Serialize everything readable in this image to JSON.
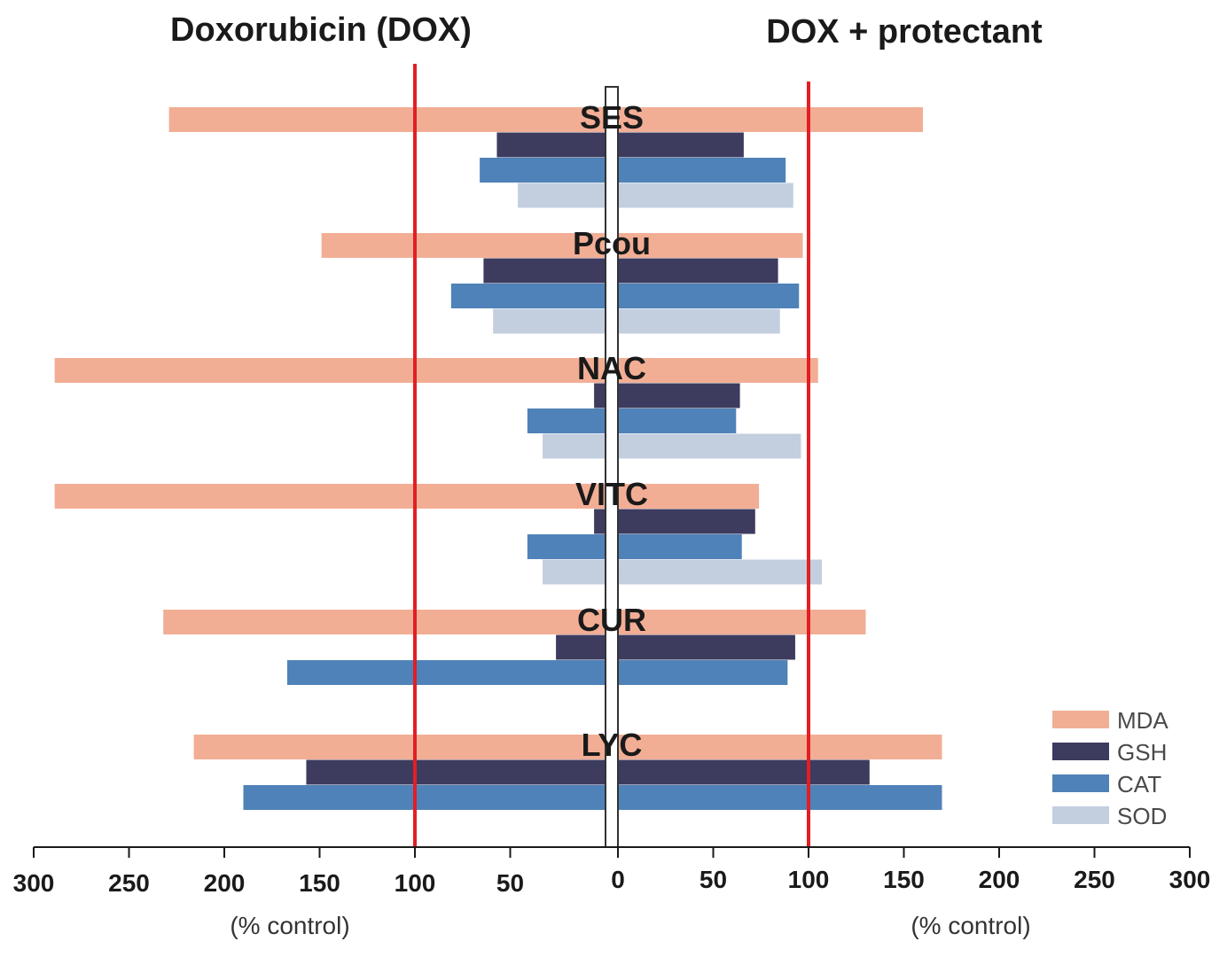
{
  "chart_data": {
    "type": "bar",
    "orientation": "horizontal-butterfly",
    "panels": [
      {
        "id": "left",
        "title": "Doxorubicin (DOX)",
        "axis_label": "(% control)",
        "direction": "reversed"
      },
      {
        "id": "right",
        "title": "DOX + protectant",
        "axis_label": "(% control)",
        "direction": "normal"
      }
    ],
    "categories": [
      "SES",
      "Pcou",
      "NAC",
      "VITC",
      "CUR",
      "LYC"
    ],
    "series": [
      {
        "name": "MDA",
        "color": "#F2AE95",
        "left": [
          229,
          149,
          289,
          289,
          232,
          216
        ],
        "right": [
          160,
          97,
          105,
          74,
          130,
          170
        ]
      },
      {
        "name": "GSH",
        "color": "#3D3B5E",
        "left": [
          57,
          64,
          6,
          6,
          26,
          157
        ],
        "right": [
          66,
          84,
          64,
          72,
          93,
          132
        ]
      },
      {
        "name": "CAT",
        "color": "#4F82B8",
        "left": [
          66,
          81,
          41,
          41,
          167,
          190
        ],
        "right": [
          88,
          95,
          62,
          65,
          89,
          170
        ]
      },
      {
        "name": "SOD",
        "color": "#C3CFDF",
        "left": [
          46,
          59,
          33,
          33,
          null,
          null
        ],
        "right": [
          92,
          85,
          96,
          107,
          null,
          null
        ]
      }
    ],
    "reference_line": {
      "value": 100,
      "color": "#E31E24"
    },
    "xlim": [
      0,
      300
    ],
    "left_ticks": [
      300,
      250,
      200,
      150,
      100,
      50
    ],
    "right_ticks": [
      0,
      50,
      100,
      150,
      200,
      250,
      300
    ],
    "legend_position": "bottom-right"
  }
}
